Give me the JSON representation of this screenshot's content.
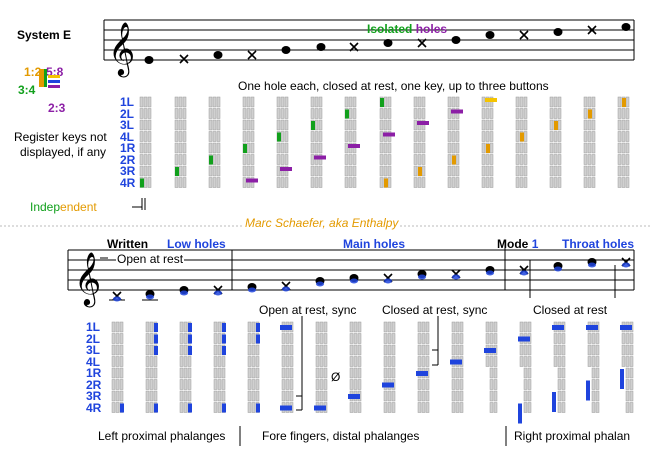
{
  "system": {
    "title": "System E"
  },
  "ratios": {
    "r12": "1:2",
    "r58": "5:8",
    "r34": "3:4",
    "r23": "2:3"
  },
  "top": {
    "heading_part1": "Isolated",
    "heading_part2": " holes",
    "subtitle": "One hole each, closed at rest, one key, up to three buttons",
    "register_note_line1": "Register keys not",
    "register_note_line2": "displayed, if any",
    "independent_part1": "Indep",
    "independent_part2": "endent"
  },
  "row_labels": [
    "1L",
    "2L",
    "3L",
    "4L",
    "1R",
    "2R",
    "3R",
    "4R"
  ],
  "credit": "Marc Schaefer, aka Enthalpy",
  "bottom": {
    "written": "Written",
    "low_holes": "Low holes",
    "main_holes": "Main holes",
    "mode": "Mode",
    "mode_num": "1",
    "throat_holes": "Throat holes",
    "open_at_rest": "Open at rest",
    "open_at_rest_sync": "Open at rest, sync",
    "closed_at_rest_sync": "Closed at rest, sync",
    "closed_at_rest": "Closed at rest",
    "empty_set": "Ø",
    "left_phalanges": "Left proximal phalanges",
    "fore_fingers": "Fore fingers, distal phalanges",
    "right_phalan": "Right proximal phalan"
  },
  "colors": {
    "blue": "#1f44dd",
    "orange": "#e39a00",
    "green": "#11a01c",
    "purple": "#8c1fa6",
    "yellow": "#f5c400",
    "grid_fill": "#d0d0d0",
    "grid_stroke": "#9a9a9a"
  },
  "top_fingering": [
    [
      [
        "green",
        7
      ]
    ],
    [
      [
        "green",
        6
      ]
    ],
    [
      [
        "green",
        5
      ]
    ],
    [
      [
        "green",
        4
      ],
      [
        "purple",
        7
      ]
    ],
    [
      [
        "green",
        3
      ],
      [
        "yellow",
        6
      ],
      [
        "purple",
        6
      ]
    ],
    [
      [
        "green",
        2
      ],
      [
        "yellow",
        5
      ],
      [
        "purple",
        5
      ]
    ],
    [
      [
        "green",
        1
      ],
      [
        "yellow",
        4
      ],
      [
        "purple",
        4
      ]
    ],
    [
      [
        "green",
        0
      ],
      [
        "yellow",
        3
      ],
      [
        "purple",
        3
      ],
      [
        "orange",
        7
      ]
    ],
    [
      [
        "yellow",
        2
      ],
      [
        "purple",
        2
      ],
      [
        "orange",
        6
      ]
    ],
    [
      [
        "yellow",
        1
      ],
      [
        "purple",
        1
      ],
      [
        "orange",
        5
      ]
    ],
    [
      [
        "yellow",
        0
      ],
      [
        "orange",
        4
      ]
    ],
    [
      [
        "orange",
        3
      ]
    ],
    [
      [
        "orange",
        2
      ]
    ],
    [
      [
        "orange",
        1
      ]
    ],
    [
      [
        "orange",
        0
      ]
    ]
  ],
  "bottom_fingering": [
    [
      7
    ],
    [
      0,
      1,
      2,
      7
    ],
    [
      0,
      1,
      7
    ],
    [
      0,
      1,
      2,
      7
    ],
    [
      0,
      1,
      7
    ],
    [
      0,
      7
    ],
    [
      7
    ],
    [
      6
    ],
    [
      5
    ],
    [
      4
    ],
    [
      3
    ],
    [
      2
    ],
    [
      1
    ],
    [
      0
    ],
    [
      0
    ],
    [
      0
    ],
    [
      0
    ],
    [
      0
    ]
  ]
}
